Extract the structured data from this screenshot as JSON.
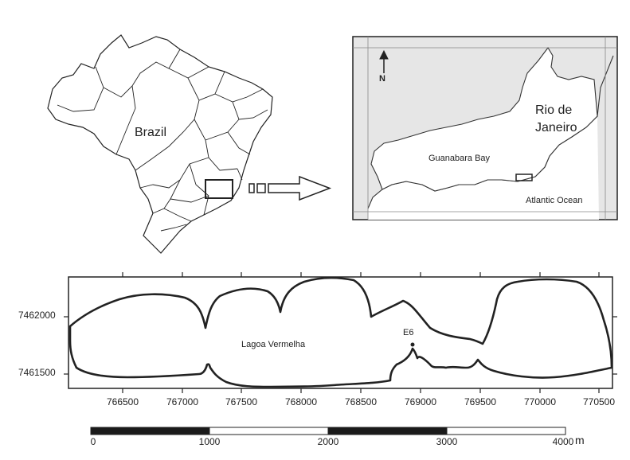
{
  "locator_map": {
    "country_label": "Brazil"
  },
  "inset_map": {
    "city_label": "Rio de Janeiro",
    "city_label_line1": "Rio de",
    "city_label_line2": "Janeiro",
    "bay_label": "Guanabara Bay",
    "ocean_label": "Atlantic Ocean",
    "north_arrow_label": "N"
  },
  "detail_map": {
    "lagoon_label": "Lagoa Vermelha",
    "station_label": "E6",
    "y_ticks": [
      "7462000",
      "7461500"
    ],
    "x_ticks": [
      "766500",
      "767000",
      "767500",
      "768000",
      "768500",
      "769000",
      "769500",
      "770000",
      "770500"
    ]
  },
  "scale_bar": {
    "ticks": [
      "0",
      "1000",
      "2000",
      "3000",
      "4000"
    ],
    "unit": "m"
  },
  "colors": {
    "land_fill": "#e6e6e6",
    "line": "#222222",
    "scalebar_dark": "#1a1a1a"
  }
}
